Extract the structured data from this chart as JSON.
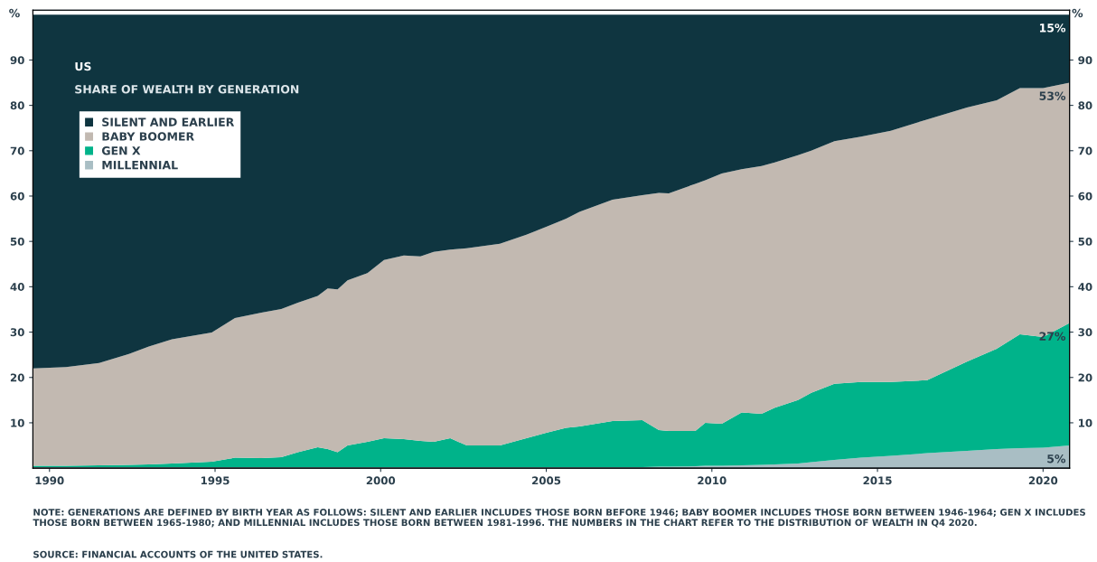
{
  "chart_data": {
    "type": "area",
    "stacked": true,
    "title": "US",
    "subtitle": "SHARE OF WEALTH BY GENERATION",
    "ylabel": "%",
    "y2label": "%",
    "x": [
      1989.5,
      1990.5,
      1991.5,
      1992.4,
      1993.0,
      1993.7,
      1994.9,
      1995.6,
      1996.4,
      1997.0,
      1997.5,
      1998.1,
      1998.4,
      1998.7,
      1999.0,
      1999.6,
      2000.1,
      2000.7,
      2001.2,
      2001.6,
      2002.1,
      2002.6,
      2003.6,
      2004.4,
      2005.0,
      2005.6,
      2006.0,
      2007.0,
      2007.9,
      2008.4,
      2008.7,
      2009.5,
      2009.8,
      2010.3,
      2010.9,
      2011.5,
      2011.9,
      2012.6,
      2013.0,
      2013.7,
      2014.5,
      2015.4,
      2016.5,
      2017.7,
      2018.6,
      2019.3,
      2020.0,
      2020.8
    ],
    "series": [
      {
        "name": "MILLENNIAL",
        "color": "#a9bec4",
        "value_labels": [
          null,
          null,
          null,
          null,
          null,
          null,
          null,
          null,
          null,
          null,
          null,
          null,
          null,
          null,
          null,
          null,
          null,
          null,
          null,
          null,
          null,
          null,
          null,
          null,
          null,
          null,
          null,
          null,
          null,
          null,
          null,
          null,
          null,
          null,
          null,
          null,
          null,
          null,
          null,
          null,
          null,
          null,
          null,
          null,
          null,
          null,
          null,
          "5%"
        ],
        "values": [
          0.2,
          0.2,
          0.2,
          0.2,
          0.2,
          0.2,
          0.2,
          0.2,
          0.2,
          0.2,
          0.2,
          0.2,
          0.2,
          0.2,
          0.2,
          0.2,
          0.2,
          0.2,
          0.2,
          0.2,
          0.2,
          0.2,
          0.2,
          0.2,
          0.2,
          0.2,
          0.2,
          0.2,
          0.2,
          0.3,
          0.3,
          0.4,
          0.5,
          0.5,
          0.6,
          0.7,
          0.8,
          1.0,
          1.3,
          1.8,
          2.3,
          2.7,
          3.3,
          3.8,
          4.2,
          4.4,
          4.5,
          5.0
        ]
      },
      {
        "name": "GEN X",
        "color": "#00b38a",
        "value_labels": [
          null,
          null,
          null,
          null,
          null,
          null,
          null,
          null,
          null,
          null,
          null,
          null,
          null,
          null,
          null,
          null,
          null,
          null,
          null,
          null,
          null,
          null,
          null,
          null,
          null,
          null,
          null,
          null,
          null,
          null,
          null,
          null,
          null,
          null,
          null,
          null,
          null,
          null,
          null,
          null,
          null,
          null,
          null,
          null,
          null,
          null,
          null,
          "27%"
        ],
        "values": [
          0.3,
          0.3,
          0.4,
          0.5,
          0.6,
          0.8,
          1.2,
          2.1,
          2.0,
          2.2,
          3.3,
          4.4,
          4.0,
          3.3,
          4.8,
          5.6,
          6.4,
          6.2,
          5.8,
          5.6,
          6.4,
          4.8,
          4.8,
          6.4,
          7.6,
          8.7,
          9.0,
          10.2,
          10.4,
          8.1,
          7.9,
          7.8,
          9.5,
          9.3,
          11.7,
          11.3,
          12.5,
          14.0,
          15.3,
          16.8,
          16.7,
          16.3,
          16.1,
          19.7,
          22.1,
          25.1,
          24.4,
          27.0
        ]
      },
      {
        "name": "BABY BOOMER",
        "color": "#c2b9b1",
        "value_labels": [
          null,
          null,
          null,
          null,
          null,
          null,
          null,
          null,
          null,
          null,
          null,
          null,
          null,
          null,
          null,
          null,
          null,
          null,
          null,
          null,
          null,
          null,
          null,
          null,
          null,
          null,
          null,
          null,
          null,
          null,
          null,
          null,
          null,
          null,
          null,
          null,
          null,
          null,
          null,
          null,
          null,
          null,
          null,
          null,
          null,
          null,
          null,
          "53%"
        ],
        "values": [
          21.5,
          21.8,
          22.6,
          24.5,
          26.0,
          27.4,
          28.5,
          30.8,
          32.1,
          32.7,
          33.0,
          33.4,
          35.4,
          35.9,
          36.4,
          37.2,
          39.3,
          40.5,
          40.7,
          41.9,
          41.6,
          43.5,
          44.5,
          44.9,
          45.4,
          46.1,
          47.3,
          48.8,
          49.6,
          52.3,
          52.4,
          54.5,
          53.5,
          55.2,
          53.6,
          54.6,
          54.1,
          54.0,
          53.4,
          53.5,
          54.1,
          55.4,
          57.5,
          56.0,
          54.8,
          54.3,
          54.9,
          53.0
        ]
      },
      {
        "name": "SILENT AND EARLIER",
        "color": "#0f3540",
        "value_labels": [
          null,
          null,
          null,
          null,
          null,
          null,
          null,
          null,
          null,
          null,
          null,
          null,
          null,
          null,
          null,
          null,
          null,
          null,
          null,
          null,
          null,
          null,
          null,
          null,
          null,
          null,
          null,
          null,
          null,
          null,
          null,
          null,
          null,
          null,
          null,
          null,
          null,
          null,
          null,
          null,
          null,
          null,
          null,
          null,
          null,
          null,
          null,
          "15%"
        ],
        "values": [
          78.0,
          77.7,
          76.8,
          74.8,
          73.2,
          71.6,
          70.1,
          66.9,
          65.7,
          64.9,
          63.5,
          62.0,
          60.4,
          60.6,
          58.6,
          57.0,
          54.1,
          53.1,
          53.3,
          52.3,
          51.8,
          51.5,
          50.5,
          48.5,
          46.8,
          45.0,
          43.5,
          40.8,
          39.8,
          39.3,
          39.4,
          37.3,
          36.5,
          35.0,
          34.1,
          33.4,
          32.6,
          31.0,
          30.0,
          27.9,
          26.9,
          25.6,
          23.1,
          20.5,
          18.9,
          16.2,
          16.2,
          15.0
        ]
      }
    ],
    "xlim": [
      1989.5,
      2020.8
    ],
    "xticks": [
      1990,
      1995,
      2000,
      2005,
      2010,
      2015,
      2020
    ],
    "ylim": [
      0,
      101
    ],
    "yticks": [
      10,
      20,
      30,
      40,
      50,
      60,
      70,
      80,
      90
    ],
    "y2lim": [
      0,
      101
    ],
    "y2ticks": [
      10,
      20,
      30,
      40,
      50,
      60,
      70,
      80,
      90
    ],
    "legend": "top left",
    "grid": false,
    "annotations": [
      "NOTE: GENERATIONS ARE DEFINED BY BIRTH YEAR AS FOLLOWS: SILENT AND EARLIER INCLUDES THOSE BORN BEFORE 1946; BABY BOOMER INCLUDES THOSE BORN BETWEEN 1946-1964; GEN X INCLUDES THOSE BORN BETWEEN 1965-1980; AND MILLENNIAL INCLUDES THOSE BORN BETWEEN 1981-1996. THE NUMBERS IN THE CHART REFER TO THE DISTRIBUTION OF WEALTH IN Q4 2020.",
      "SOURCE: FINANCIAL ACCOUNTS OF THE UNITED STATES."
    ]
  }
}
